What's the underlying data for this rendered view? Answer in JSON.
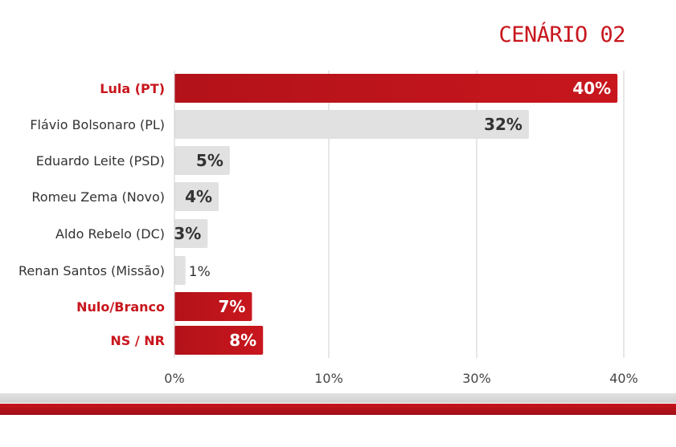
{
  "header": {
    "title": "CENÁRIO 02"
  },
  "colors": {
    "accent": "#c8161d",
    "accent_dark": "#b3121a",
    "neutral_bar": "#e1e1e1",
    "label_text": "#333333",
    "grid": "#cfcfcf"
  },
  "chart_data": {
    "type": "bar",
    "orientation": "horizontal",
    "title": "",
    "xlabel": "",
    "ylabel": "",
    "xlim": [
      0,
      40
    ],
    "xticks": [
      {
        "value": 0,
        "label": "0%"
      },
      {
        "value": 10,
        "label": "10%"
      },
      {
        "value": 30,
        "label": "30%"
      },
      {
        "value": 40,
        "label": "40%"
      }
    ],
    "grid": true,
    "legend": "none",
    "categories": [
      "Lula (PT)",
      "Flávio Bolsonaro (PL)",
      "Eduardo Leite (PSD)",
      "Romeu Zema (Novo)",
      "Aldo Rebelo (DC)",
      "Renan Santos (Missão)",
      "Nulo/Branco",
      "NS / NR"
    ],
    "values": [
      40,
      32,
      5,
      4,
      3,
      1,
      7,
      8
    ],
    "value_labels": [
      "40%",
      "32%",
      "5%",
      "4%",
      "3%",
      "1%",
      "7%",
      "8%"
    ],
    "highlight": [
      "red",
      "gray",
      "gray",
      "gray",
      "gray",
      "gray",
      "red",
      "red"
    ]
  }
}
